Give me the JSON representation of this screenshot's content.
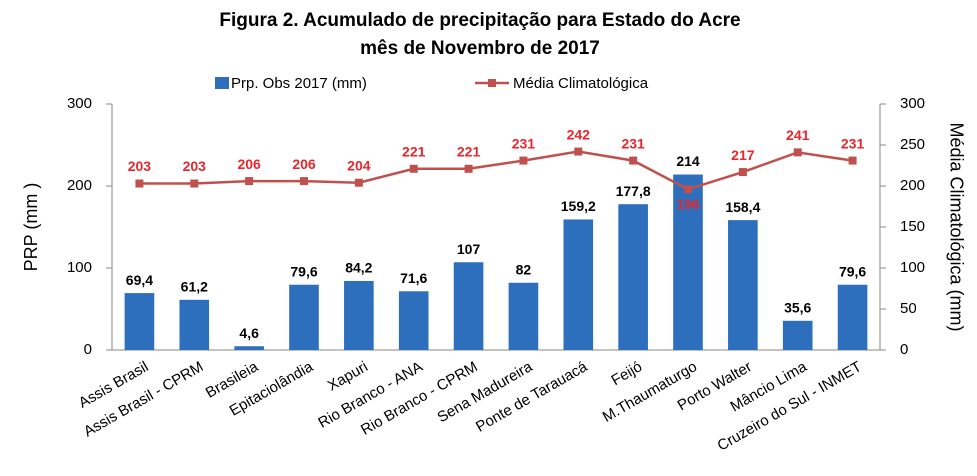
{
  "chart_data": {
    "type": "bar",
    "title": [
      "Figura 2. Acumulado de precipitação para  Estado do Acre",
      "mês de Novembro de 2017"
    ],
    "y_label": "PRP (mm )",
    "y2_label": "Média Climatológica (mm)",
    "categories": [
      "Assis Brasil",
      "Assis Brasil - CPRM",
      "Brasileia",
      "Epitaciolândia",
      "Xapuri",
      "Rio Branco - ANA",
      "Rio Branco - CPRM",
      "Sena Madureira",
      "Ponte de Tarauacá",
      "Feijó",
      "M.Thaumaturgo",
      "Porto Walter",
      "Mâncio Lima",
      "Cruzeiro do Sul - INMET"
    ],
    "series": [
      {
        "name": "Prp. Obs 2017 (mm)",
        "type": "bar",
        "color": "#2e6fbd",
        "values": [
          69.4,
          61.2,
          4.6,
          79.6,
          84.2,
          71.6,
          107,
          82,
          159.2,
          177.8,
          214,
          158.4,
          35.6,
          79.6
        ],
        "value_labels": [
          "69,4",
          "61,2",
          "4,6",
          "79,6",
          "84,2",
          "71,6",
          "107",
          "82",
          "159,2",
          "177,8",
          "214",
          "158,4",
          "35,6",
          "79,6"
        ]
      },
      {
        "name": "Média Climatológica",
        "type": "line",
        "axis": "y2",
        "color": "#c0504d",
        "values": [
          203,
          203,
          206,
          206,
          204,
          221,
          221,
          231,
          242,
          231,
          196,
          217,
          241,
          231
        ]
      }
    ],
    "ylim": [
      0,
      300
    ],
    "yticks": [
      0,
      100,
      200,
      300
    ],
    "y2lim": [
      0,
      300
    ],
    "y2ticks": [
      0,
      50,
      100,
      150,
      200,
      250,
      300
    ],
    "legend": "top"
  }
}
